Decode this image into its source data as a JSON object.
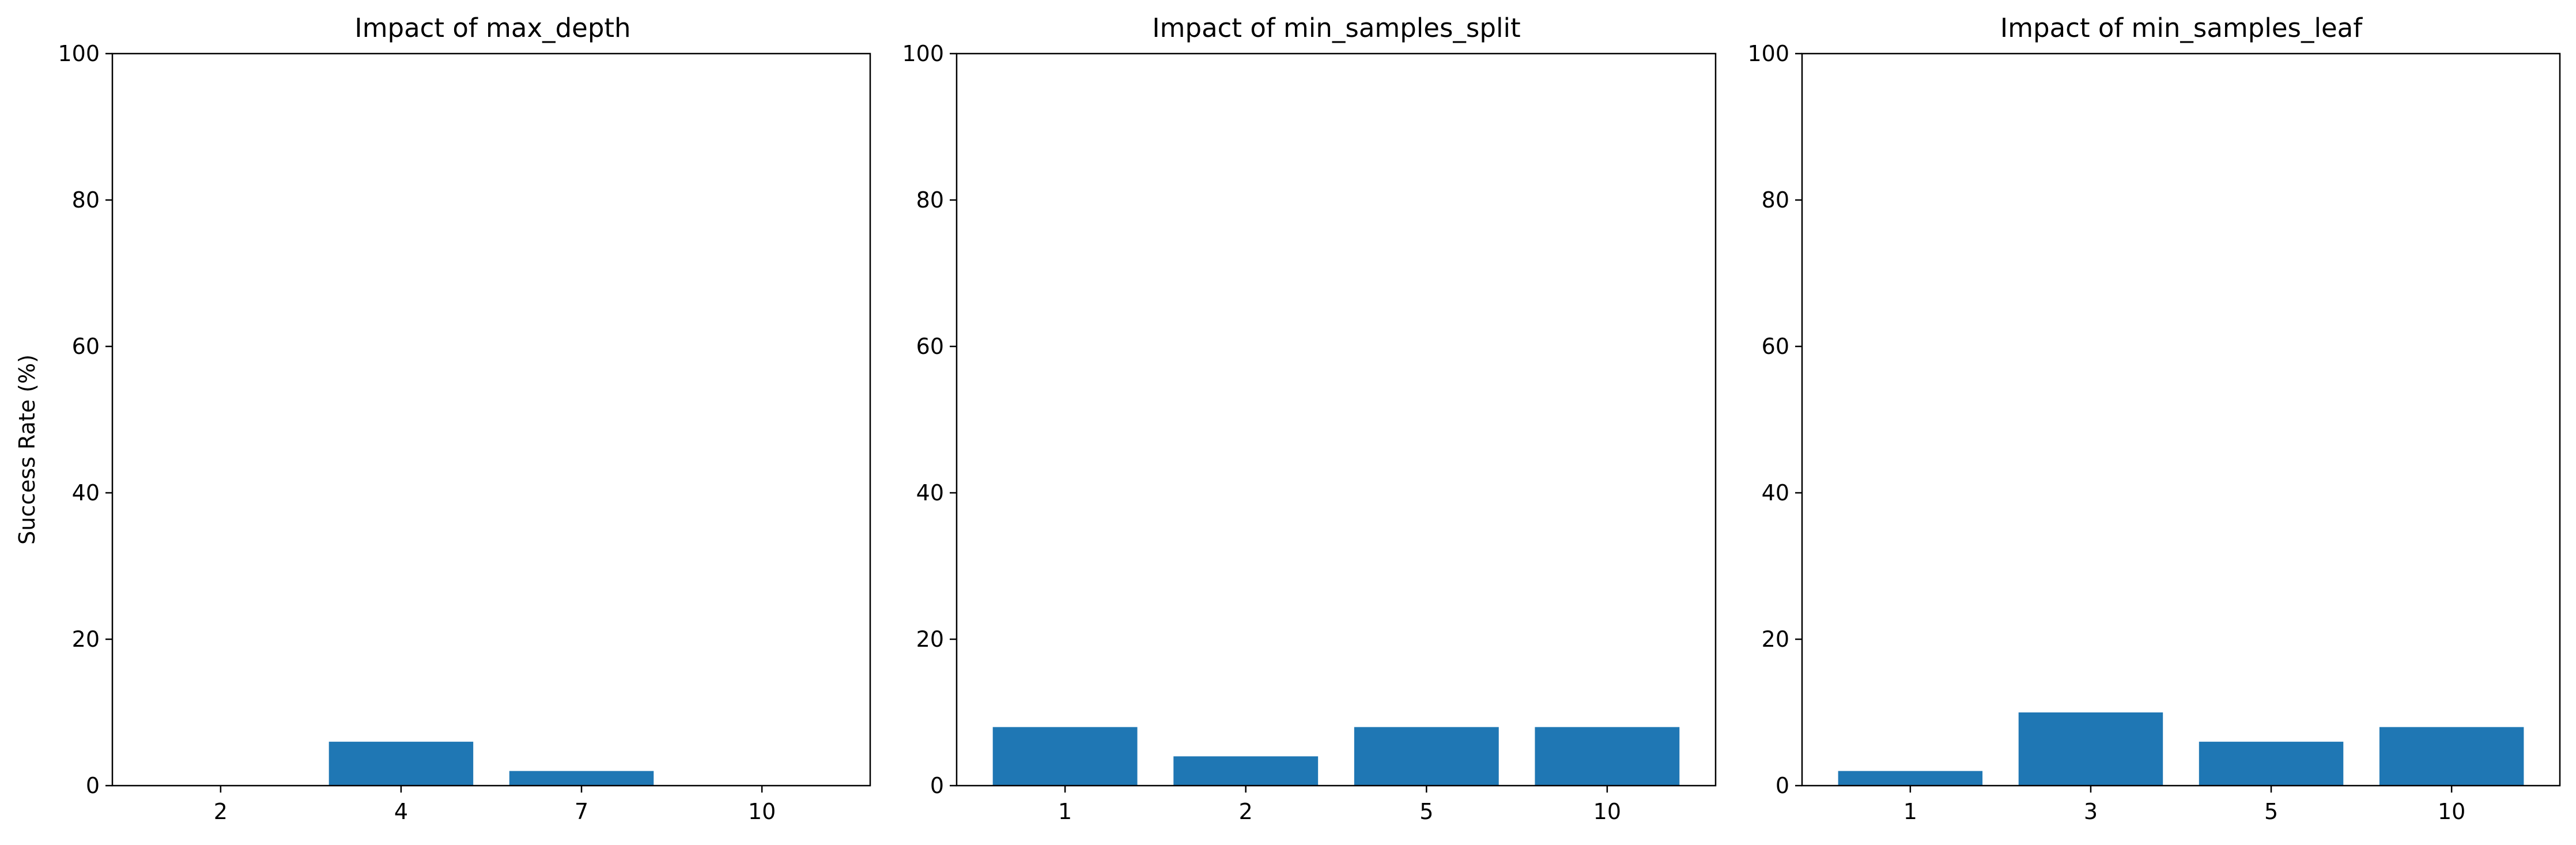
{
  "colors": {
    "bar": "#1f77b4",
    "axis": "#000000",
    "background": "#ffffff"
  },
  "chart_data": [
    {
      "type": "bar",
      "title": "Impact of max_depth",
      "xlabel": "",
      "ylabel": "Success Rate (%)",
      "ylim": [
        0,
        100
      ],
      "yticks": [
        0,
        20,
        40,
        60,
        80,
        100
      ],
      "categories": [
        "2",
        "4",
        "7",
        "10"
      ],
      "values": [
        0,
        6,
        2,
        0
      ],
      "grid": false
    },
    {
      "type": "bar",
      "title": "Impact of min_samples_split",
      "xlabel": "",
      "ylabel": "",
      "ylim": [
        0,
        100
      ],
      "yticks": [
        0,
        20,
        40,
        60,
        80,
        100
      ],
      "categories": [
        "1",
        "2",
        "5",
        "10"
      ],
      "values": [
        8,
        4,
        8,
        8
      ],
      "grid": false
    },
    {
      "type": "bar",
      "title": "Impact of min_samples_leaf",
      "xlabel": "",
      "ylabel": "",
      "ylim": [
        0,
        100
      ],
      "yticks": [
        0,
        20,
        40,
        60,
        80,
        100
      ],
      "categories": [
        "1",
        "3",
        "5",
        "10"
      ],
      "values": [
        2,
        10,
        6,
        8
      ],
      "grid": false
    }
  ]
}
